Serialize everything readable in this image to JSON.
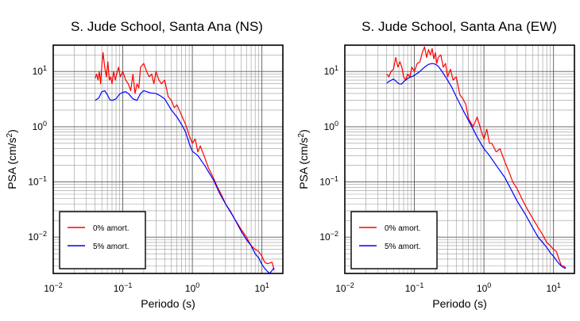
{
  "chart_data": [
    {
      "type": "line",
      "title": "S. Jude School, Santa Ana (NS)",
      "xlabel": "Periodo (s)",
      "ylabel_main": "PSA (cm/s",
      "ylabel_sup": "2",
      "ylabel_end": ")",
      "xscale": "log",
      "yscale": "log",
      "xlim": [
        0.01,
        20
      ],
      "ylim": [
        0.0022,
        30
      ],
      "grid": true,
      "legend_position": "bottom-left",
      "x_ticks": [
        {
          "base": "10",
          "exp": "−2"
        },
        {
          "base": "10",
          "exp": "−1"
        },
        {
          "base": "10",
          "exp": "0"
        },
        {
          "base": "10",
          "exp": "1"
        }
      ],
      "y_ticks": [
        {
          "base": "10",
          "exp": "−2"
        },
        {
          "base": "10",
          "exp": "−1"
        },
        {
          "base": "10",
          "exp": "0"
        },
        {
          "base": "10",
          "exp": "1"
        }
      ],
      "series": [
        {
          "name": "0% amort.",
          "color": "#ff0000",
          "x": [
            0.04,
            0.042,
            0.044,
            0.046,
            0.048,
            0.05,
            0.052,
            0.055,
            0.058,
            0.061,
            0.064,
            0.067,
            0.07,
            0.074,
            0.078,
            0.082,
            0.087,
            0.092,
            0.1,
            0.11,
            0.12,
            0.13,
            0.14,
            0.15,
            0.16,
            0.17,
            0.18,
            0.2,
            0.22,
            0.24,
            0.26,
            0.28,
            0.3,
            0.33,
            0.36,
            0.4,
            0.45,
            0.5,
            0.55,
            0.6,
            0.7,
            0.8,
            0.9,
            1.0,
            1.1,
            1.2,
            1.3,
            1.5,
            1.7,
            2.0,
            2.3,
            2.6,
            3.0,
            3.5,
            4.0,
            5.0,
            6.0,
            7.0,
            8.0,
            9.0,
            10.0,
            11.0,
            12.0,
            14.0,
            15.0
          ],
          "y": [
            7.5,
            9,
            7,
            10,
            6,
            13,
            22,
            12,
            8,
            15,
            7,
            8,
            6,
            10,
            7,
            9,
            12,
            8,
            10,
            7,
            6,
            4.5,
            9,
            4,
            6,
            5,
            12,
            14,
            10,
            8,
            9,
            6,
            10,
            7,
            6,
            7,
            3.5,
            3,
            2.2,
            2.5,
            1.6,
            1.1,
            0.7,
            0.5,
            0.6,
            0.35,
            0.45,
            0.28,
            0.18,
            0.12,
            0.08,
            0.06,
            0.04,
            0.03,
            0.022,
            0.014,
            0.01,
            0.007,
            0.006,
            0.0055,
            0.0045,
            0.0035,
            0.0033,
            0.0035,
            0.0025
          ]
        },
        {
          "name": "5% amort.",
          "color": "#0000ff",
          "x": [
            0.04,
            0.045,
            0.05,
            0.055,
            0.06,
            0.065,
            0.07,
            0.08,
            0.09,
            0.1,
            0.11,
            0.12,
            0.14,
            0.16,
            0.18,
            0.2,
            0.25,
            0.3,
            0.35,
            0.4,
            0.5,
            0.6,
            0.7,
            0.8,
            0.9,
            1.0,
            1.2,
            1.5,
            2.0,
            2.5,
            3.0,
            4.0,
            5.0,
            6.0,
            7.0,
            8.0,
            9.0,
            10.0,
            11.0,
            12.0,
            13.0,
            14.0,
            15.0
          ],
          "y": [
            3.0,
            3.3,
            4.3,
            4.5,
            3.8,
            3.1,
            3.0,
            3.2,
            3.9,
            4.2,
            4.3,
            4.0,
            3.2,
            3.0,
            4.0,
            4.5,
            4.1,
            4.0,
            3.6,
            3.2,
            2.0,
            1.5,
            1.1,
            0.8,
            0.5,
            0.36,
            0.3,
            0.2,
            0.11,
            0.06,
            0.04,
            0.022,
            0.013,
            0.009,
            0.007,
            0.005,
            0.0042,
            0.0032,
            0.0027,
            0.0024,
            0.0022,
            0.0025,
            0.0028
          ]
        }
      ]
    },
    {
      "type": "line",
      "title": "S. Jude School, Santa Ana (EW)",
      "xlabel": "Periodo (s)",
      "ylabel_main": "PSA (cm/s",
      "ylabel_sup": "2",
      "ylabel_end": ")",
      "xscale": "log",
      "yscale": "log",
      "xlim": [
        0.01,
        20
      ],
      "ylim": [
        0.0022,
        30
      ],
      "grid": true,
      "legend_position": "bottom-left",
      "x_ticks": [
        {
          "base": "10",
          "exp": "−2"
        },
        {
          "base": "10",
          "exp": "−1"
        },
        {
          "base": "10",
          "exp": "0"
        },
        {
          "base": "10",
          "exp": "1"
        }
      ],
      "y_ticks": [
        {
          "base": "10",
          "exp": "−2"
        },
        {
          "base": "10",
          "exp": "−1"
        },
        {
          "base": "10",
          "exp": "0"
        },
        {
          "base": "10",
          "exp": "1"
        }
      ],
      "series": [
        {
          "name": "0% amort.",
          "color": "#ff0000",
          "x": [
            0.04,
            0.043,
            0.046,
            0.05,
            0.054,
            0.058,
            0.062,
            0.066,
            0.07,
            0.075,
            0.08,
            0.086,
            0.092,
            0.1,
            0.11,
            0.12,
            0.13,
            0.14,
            0.15,
            0.16,
            0.17,
            0.18,
            0.19,
            0.2,
            0.21,
            0.22,
            0.24,
            0.26,
            0.28,
            0.3,
            0.33,
            0.36,
            0.4,
            0.45,
            0.5,
            0.55,
            0.6,
            0.7,
            0.8,
            0.9,
            1.0,
            1.1,
            1.2,
            1.3,
            1.5,
            1.7,
            2.0,
            2.3,
            2.6,
            3.0,
            3.5,
            4.0,
            5.0,
            6.0,
            7.0,
            8.0,
            9.0,
            10.0,
            11.0,
            12.0,
            13.0,
            14.0,
            15.0
          ],
          "y": [
            9,
            8,
            10,
            11,
            18,
            12,
            15,
            12,
            8,
            7,
            9,
            8,
            12,
            10,
            14,
            15,
            22,
            28,
            18,
            25,
            20,
            26,
            17,
            22,
            14,
            18,
            20,
            12,
            14,
            8,
            11,
            7,
            8,
            3.8,
            3.2,
            2.5,
            1.4,
            1.0,
            1.5,
            0.9,
            0.6,
            0.9,
            0.5,
            0.5,
            0.35,
            0.4,
            0.23,
            0.15,
            0.1,
            0.075,
            0.05,
            0.036,
            0.022,
            0.015,
            0.011,
            0.008,
            0.007,
            0.006,
            0.0055,
            0.004,
            0.003,
            0.003,
            0.0028
          ]
        },
        {
          "name": "5% amort.",
          "color": "#0000ff",
          "x": [
            0.04,
            0.045,
            0.05,
            0.055,
            0.06,
            0.065,
            0.07,
            0.08,
            0.09,
            0.1,
            0.12,
            0.14,
            0.16,
            0.18,
            0.2,
            0.22,
            0.25,
            0.28,
            0.3,
            0.35,
            0.4,
            0.5,
            0.6,
            0.7,
            0.8,
            0.9,
            1.0,
            1.2,
            1.5,
            2.0,
            2.5,
            3.0,
            4.0,
            5.0,
            6.0,
            7.0,
            8.0,
            9.0,
            10.0,
            11.0,
            12.0,
            13.0,
            14.0,
            15.0
          ],
          "y": [
            6.2,
            6.8,
            7.3,
            6.6,
            6.0,
            5.9,
            6.5,
            7.5,
            8.0,
            8.5,
            10,
            12,
            13.5,
            14,
            13.6,
            12.5,
            10,
            8,
            7,
            5,
            3.5,
            2.0,
            1.3,
            0.9,
            0.65,
            0.5,
            0.4,
            0.3,
            0.2,
            0.12,
            0.07,
            0.045,
            0.025,
            0.015,
            0.01,
            0.008,
            0.0065,
            0.0052,
            0.0045,
            0.0038,
            0.0033,
            0.003,
            0.0028,
            0.0027
          ]
        }
      ]
    }
  ]
}
